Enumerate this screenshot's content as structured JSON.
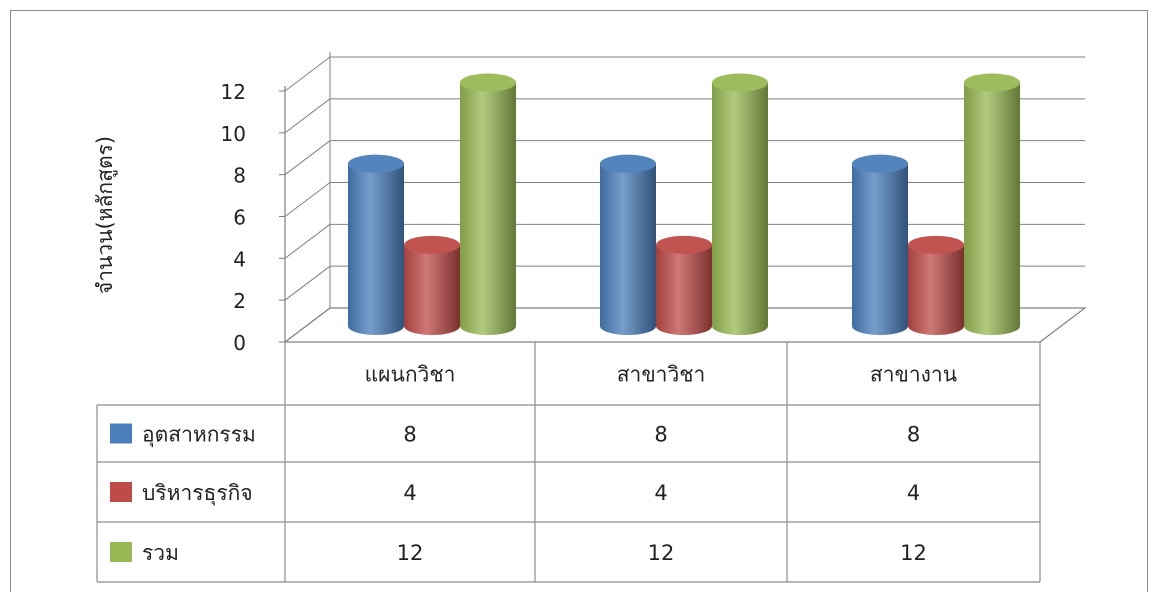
{
  "chart_data": {
    "type": "bar",
    "title": "",
    "xlabel": "",
    "ylabel": "จำนวน(หลักสูตร)",
    "ylim": [
      0,
      12
    ],
    "yticks": [
      0,
      2,
      4,
      6,
      8,
      10,
      12
    ],
    "grid": true,
    "legend": "data-table-left",
    "categories": [
      "แผนกวิชา",
      "สาขาวิชา",
      "สาขางาน"
    ],
    "series": [
      {
        "name": "อุตสาหกรรม",
        "values": [
          8,
          8,
          8
        ],
        "color": "#4a7ebb"
      },
      {
        "name": "บริหารธุรกิจ",
        "values": [
          4,
          4,
          4
        ],
        "color": "#be4b48"
      },
      {
        "name": "รวม",
        "values": [
          12,
          12,
          12
        ],
        "color": "#98b954"
      }
    ]
  }
}
